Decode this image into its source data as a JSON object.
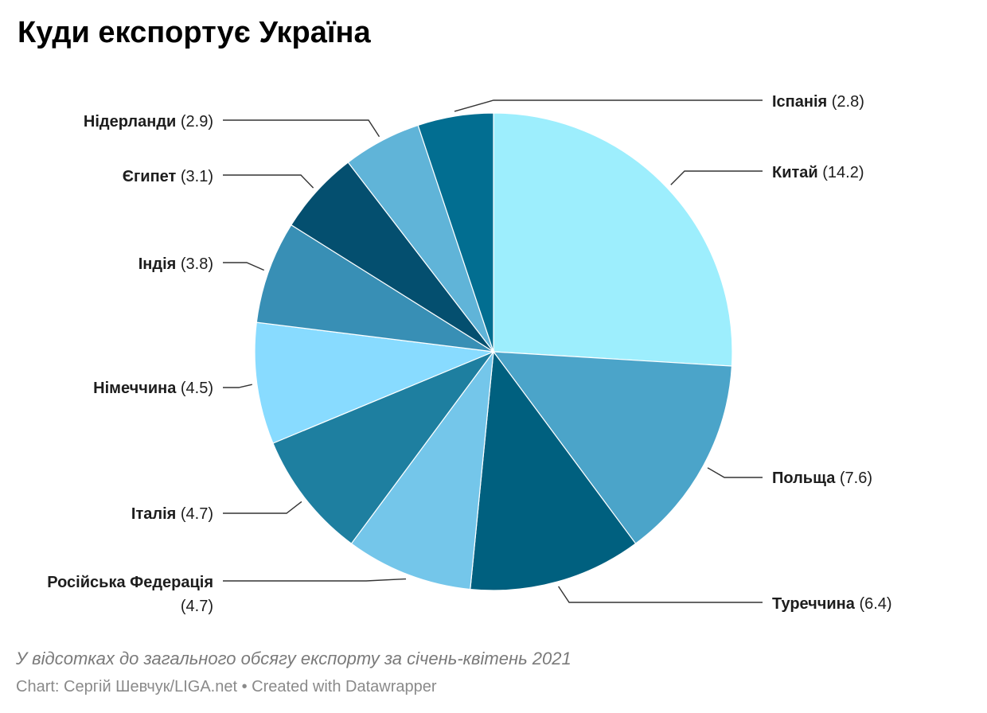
{
  "chart_data": {
    "type": "pie",
    "title": "Куди експортує Україна",
    "subtitle": "У відсотках до загального обсягу експорту за січень-квітень 2021",
    "footer": {
      "source": "Chart: Сергій Шевчук/LIGA.net",
      "separator": "•",
      "credit": "Created with Datawrapper"
    },
    "slices": [
      {
        "label": "Китай",
        "value": 14.2,
        "value_label": "(14.2)",
        "color": "#9deefd"
      },
      {
        "label": "Польща",
        "value": 7.6,
        "value_label": "(7.6)",
        "color": "#4ba4c9"
      },
      {
        "label": "Туреччина",
        "value": 6.4,
        "value_label": "(6.4)",
        "color": "#00607f"
      },
      {
        "label": "Російська Федерація",
        "value": 4.7,
        "value_label": "(4.7)",
        "color": "#74c6ea"
      },
      {
        "label": "Італія",
        "value": 4.7,
        "value_label": "(4.7)",
        "color": "#1e7fa0"
      },
      {
        "label": "Німеччина",
        "value": 4.5,
        "value_label": "(4.5)",
        "color": "#88dbff"
      },
      {
        "label": "Індія",
        "value": 3.8,
        "value_label": "(3.8)",
        "color": "#388fb5"
      },
      {
        "label": "Єгипет",
        "value": 3.1,
        "value_label": "(3.1)",
        "color": "#044f6f"
      },
      {
        "label": "Нідерланди",
        "value": 2.9,
        "value_label": "(2.9)",
        "color": "#60b4d8"
      },
      {
        "label": "Іспанія",
        "value": 2.8,
        "value_label": "(2.8)",
        "color": "#026e91"
      }
    ]
  }
}
